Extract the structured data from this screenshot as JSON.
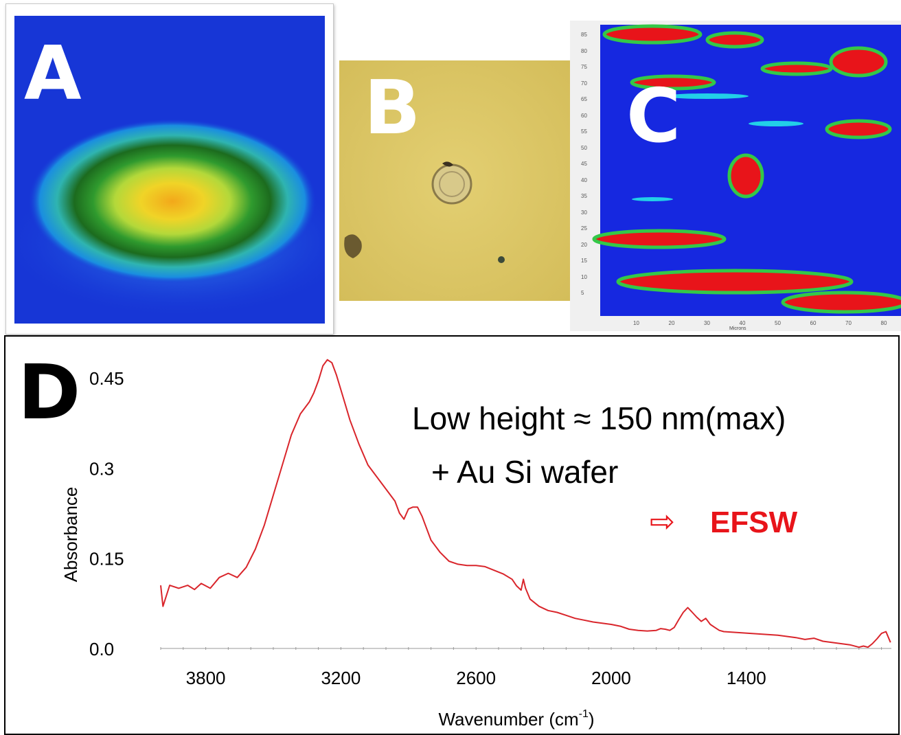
{
  "panels": {
    "a": {
      "label": "A"
    },
    "b": {
      "label": "B"
    },
    "c": {
      "label": "C",
      "x_axis_label": "Microns",
      "x_ticks": [
        "10",
        "20",
        "30",
        "40",
        "50",
        "60",
        "70",
        "80"
      ],
      "y_ticks": [
        "85",
        "80",
        "75",
        "70",
        "65",
        "60",
        "55",
        "50",
        "45",
        "40",
        "35",
        "30",
        "25",
        "20",
        "15",
        "10",
        "5"
      ]
    },
    "d": {
      "label": "D"
    }
  },
  "annotations": {
    "line1": "Low height ≈ 150 nm(max)",
    "line2": "+  Au Si wafer",
    "arrow": "⇨",
    "efsw": "EFSW",
    "efsw_color": "#e8141a"
  },
  "chart_data": {
    "type": "line",
    "xlabel": "Wavenumber (cm",
    "xlabel_sup": "-1",
    "xlabel_end": ")",
    "ylabel": "Absorbance",
    "x_reversed": true,
    "xlim": [
      4000,
      756
    ],
    "ylim": [
      0.0,
      0.45
    ],
    "x_ticks": [
      3800,
      3200,
      2600,
      2000,
      1400
    ],
    "y_ticks": [
      "0.0",
      "0.15",
      "0.3",
      "0.45"
    ],
    "grid": false,
    "series_color": "#d9252b",
    "series": [
      {
        "x": [
          4000,
          3990,
          3960,
          3920,
          3880,
          3850,
          3820,
          3780,
          3740,
          3700,
          3660,
          3620,
          3580,
          3540,
          3500,
          3460,
          3420,
          3380,
          3340,
          3320,
          3300,
          3280,
          3260,
          3240,
          3220,
          3200,
          3180,
          3160,
          3120,
          3080,
          3040,
          3000,
          2960,
          2940,
          2920,
          2900,
          2880,
          2860,
          2840,
          2800,
          2760,
          2720,
          2680,
          2640,
          2600,
          2560,
          2520,
          2480,
          2440,
          2420,
          2400,
          2390,
          2380,
          2360,
          2320,
          2280,
          2240,
          2200,
          2160,
          2120,
          2080,
          2040,
          2000,
          1960,
          1920,
          1880,
          1840,
          1800,
          1780,
          1760,
          1740,
          1720,
          1700,
          1680,
          1660,
          1640,
          1620,
          1600,
          1580,
          1560,
          1540,
          1520,
          1500,
          1460,
          1420,
          1380,
          1340,
          1300,
          1260,
          1220,
          1180,
          1140,
          1100,
          1060,
          1020,
          980,
          940,
          900,
          880,
          860,
          840,
          820,
          800,
          780,
          760
        ],
        "y": [
          0.105,
          0.07,
          0.105,
          0.1,
          0.105,
          0.098,
          0.108,
          0.1,
          0.118,
          0.125,
          0.118,
          0.135,
          0.165,
          0.205,
          0.255,
          0.305,
          0.355,
          0.39,
          0.41,
          0.425,
          0.445,
          0.47,
          0.48,
          0.475,
          0.455,
          0.43,
          0.405,
          0.38,
          0.34,
          0.305,
          0.285,
          0.265,
          0.245,
          0.225,
          0.215,
          0.232,
          0.235,
          0.235,
          0.22,
          0.18,
          0.16,
          0.145,
          0.14,
          0.138,
          0.138,
          0.136,
          0.13,
          0.124,
          0.115,
          0.104,
          0.097,
          0.115,
          0.1,
          0.082,
          0.07,
          0.063,
          0.06,
          0.055,
          0.05,
          0.047,
          0.044,
          0.042,
          0.04,
          0.037,
          0.032,
          0.03,
          0.029,
          0.03,
          0.033,
          0.032,
          0.03,
          0.035,
          0.048,
          0.06,
          0.068,
          0.06,
          0.052,
          0.045,
          0.05,
          0.04,
          0.035,
          0.03,
          0.028,
          0.027,
          0.026,
          0.025,
          0.024,
          0.023,
          0.022,
          0.02,
          0.018,
          0.015,
          0.017,
          0.012,
          0.01,
          0.008,
          0.006,
          0.002,
          0.004,
          0.002,
          0.008,
          0.016,
          0.025,
          0.028,
          0.01
        ]
      }
    ]
  }
}
